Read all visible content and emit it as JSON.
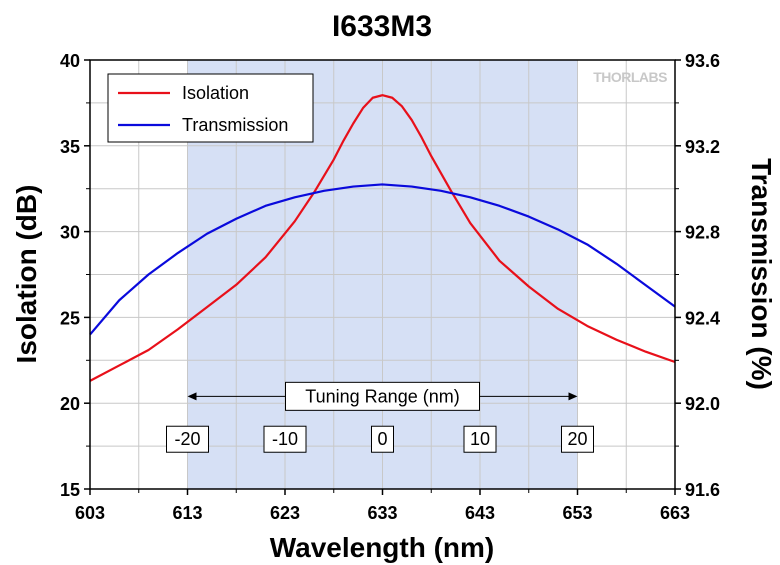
{
  "chart_data": {
    "type": "line",
    "title": "I633M3",
    "xlabel": "Wavelength (nm)",
    "ylabel_left": "Isolation (dB)",
    "ylabel_right": "Transmission (%)",
    "xlim": [
      603,
      663
    ],
    "ylim_left": [
      15,
      40
    ],
    "ylim_right": [
      91.6,
      93.6
    ],
    "xticks": [
      603,
      613,
      623,
      633,
      643,
      653,
      663
    ],
    "xtick_labels": [
      "603",
      "613",
      "623",
      "633",
      "643",
      "653",
      "663"
    ],
    "yticks_left": [
      15,
      20,
      25,
      30,
      35,
      40
    ],
    "ytick_left_labels": [
      "15",
      "20",
      "25",
      "30",
      "35",
      "40"
    ],
    "yticks_right": [
      91.6,
      92.0,
      92.4,
      92.8,
      93.2,
      93.6
    ],
    "ytick_right_labels": [
      "91.6",
      "92.0",
      "92.4",
      "92.8",
      "93.2",
      "93.6"
    ],
    "grid": true,
    "legend_position": "top-left",
    "shaded_region": {
      "x": [
        613,
        653
      ],
      "color": "#d6e0f5"
    },
    "annotation": {
      "label": "Tuning Range (nm)",
      "x_range": [
        613,
        653
      ],
      "y": 20.4,
      "offsets": [
        "-20",
        "-10",
        "0",
        "10",
        "20"
      ],
      "offset_x": [
        613,
        623,
        633,
        643,
        653
      ],
      "offset_y": 17.9
    },
    "watermark": "THORLABS",
    "series": [
      {
        "name": "Isolation",
        "axis": "left",
        "color": "#e8101a",
        "x": [
          603,
          606,
          609,
          612,
          615,
          618,
          621,
          624,
          626,
          628,
          629,
          630,
          631,
          632,
          633,
          634,
          635,
          636,
          637,
          638,
          640,
          642,
          645,
          648,
          651,
          654,
          657,
          660,
          663
        ],
        "y": [
          21.3,
          22.2,
          23.1,
          24.3,
          25.6,
          26.9,
          28.5,
          30.6,
          32.3,
          34.2,
          35.3,
          36.3,
          37.2,
          37.8,
          37.95,
          37.8,
          37.3,
          36.5,
          35.5,
          34.4,
          32.4,
          30.5,
          28.3,
          26.8,
          25.5,
          24.5,
          23.7,
          23.0,
          22.4
        ]
      },
      {
        "name": "Transmission",
        "axis": "right",
        "color": "#0a0adc",
        "x": [
          603,
          606,
          609,
          612,
          615,
          618,
          621,
          624,
          627,
          630,
          633,
          636,
          639,
          642,
          645,
          648,
          651,
          654,
          657,
          660,
          663
        ],
        "y": [
          92.32,
          92.48,
          92.6,
          92.7,
          92.79,
          92.86,
          92.92,
          92.96,
          92.99,
          93.01,
          93.02,
          93.01,
          92.99,
          92.96,
          92.92,
          92.87,
          92.81,
          92.74,
          92.65,
          92.55,
          92.45
        ]
      }
    ]
  }
}
